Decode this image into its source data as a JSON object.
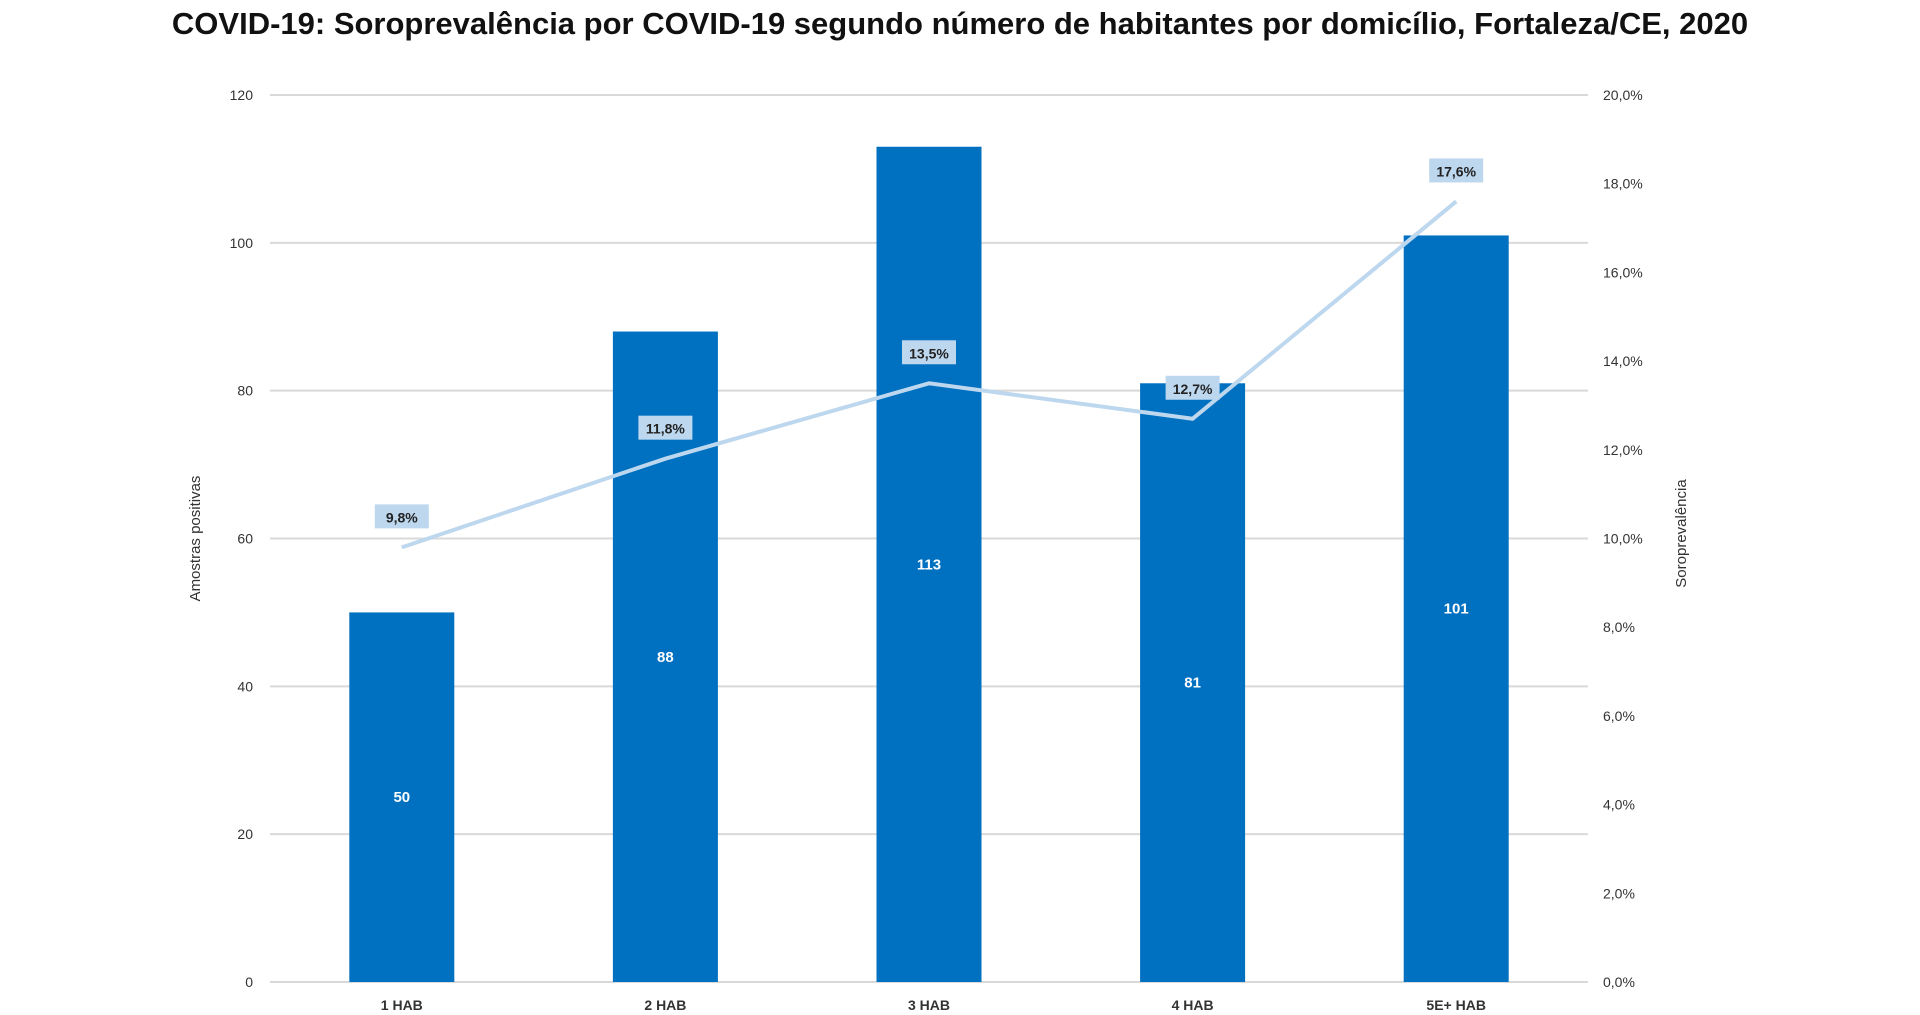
{
  "chart_data": {
    "type": "bar+line",
    "title": "COVID-19: Soroprevalência por COVID-19 segundo número de habitantes por domicílio, Fortaleza/CE, 2020",
    "categories": [
      "1 HAB",
      "2 HAB",
      "3 HAB",
      "4 HAB",
      "5E+ HAB"
    ],
    "bar_values": [
      50,
      88,
      113,
      81,
      101
    ],
    "bar_labels": [
      "50",
      "88",
      "113",
      "81",
      "101"
    ],
    "line_values": [
      9.8,
      11.8,
      13.5,
      12.7,
      17.6
    ],
    "line_labels": [
      "9,8%",
      "11,8%",
      "13,5%",
      "12,7%",
      "17,6%"
    ],
    "ylabel_left": "Amostras positivas",
    "ylabel_right": "Soroprevalência",
    "ylim_left": [
      0,
      120
    ],
    "ylim_right": [
      0,
      20
    ],
    "left_ticks": [
      "0",
      "20",
      "40",
      "60",
      "80",
      "100",
      "120"
    ],
    "right_ticks": [
      "0,0%",
      "2,0%",
      "4,0%",
      "6,0%",
      "8,0%",
      "10,0%",
      "12,0%",
      "14,0%",
      "16,0%",
      "18,0%",
      "20,0%"
    ],
    "grid": true,
    "colors": {
      "bar": "#0070C0",
      "line": "#BDD7EE",
      "label_bg": "#BDD7EE",
      "grid": "#D9D9D9"
    }
  }
}
